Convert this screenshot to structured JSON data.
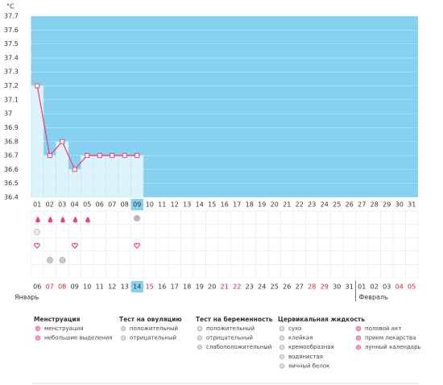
{
  "chart_data": {
    "type": "line",
    "y_unit": "°C",
    "categories": [
      "01",
      "02",
      "03",
      "04",
      "05",
      "06",
      "07",
      "08",
      "09",
      "10",
      "11",
      "12",
      "13",
      "14",
      "15",
      "16",
      "17",
      "18",
      "19",
      "20",
      "21",
      "22",
      "23",
      "24",
      "25",
      "26",
      "27",
      "28",
      "29",
      "30",
      "31"
    ],
    "values": [
      37.2,
      36.7,
      36.8,
      36.6,
      36.7,
      36.7,
      36.7,
      36.7,
      36.7,
      null,
      null,
      null,
      null,
      null,
      null,
      null,
      null,
      null,
      null,
      null,
      null,
      null,
      null,
      null,
      null,
      null,
      null,
      null,
      null,
      null,
      null
    ],
    "color": "#e8457c",
    "background_color": "#87d1f0",
    "bar_color": "#dcf3fc",
    "ylim": [
      36.4,
      37.7
    ],
    "yticks": [
      36.4,
      36.5,
      36.6,
      36.7,
      36.8,
      36.9,
      37,
      37.1,
      37.2,
      37.3,
      37.4,
      37.5,
      37.6,
      37.7
    ],
    "grid": true,
    "highlight_index": 8
  },
  "calendar": {
    "dates": [
      {
        "text": "06"
      },
      {
        "text": "07",
        "red": true
      },
      {
        "text": "08",
        "red": true
      },
      {
        "text": "09"
      },
      {
        "text": "10"
      },
      {
        "text": "11"
      },
      {
        "text": "12"
      },
      {
        "text": "13"
      },
      {
        "text": "14",
        "highlight": true
      },
      {
        "text": "15",
        "red": true
      },
      {
        "text": "16"
      },
      {
        "text": "17"
      },
      {
        "text": "18"
      },
      {
        "text": "19"
      },
      {
        "text": "20"
      },
      {
        "text": "21",
        "red": true
      },
      {
        "text": "22",
        "red": true
      },
      {
        "text": "23"
      },
      {
        "text": "24"
      },
      {
        "text": "25"
      },
      {
        "text": "26"
      },
      {
        "text": "27"
      },
      {
        "text": "28",
        "red": true
      },
      {
        "text": "29",
        "red": true
      },
      {
        "text": "30"
      },
      {
        "text": "31"
      },
      {
        "text": "01"
      },
      {
        "text": "02"
      },
      {
        "text": "03"
      },
      {
        "text": "04",
        "red": true
      },
      {
        "text": "05",
        "red": true
      }
    ],
    "months": [
      "Январь",
      "Февраль"
    ]
  },
  "legend": [
    {
      "title": "Менструация",
      "items": [
        "менструация",
        "небольшие выделения"
      ]
    },
    {
      "title": "Тест на овуляцию",
      "items": [
        "положительный",
        "отрицательный"
      ]
    },
    {
      "title": "Тест на беременность",
      "items": [
        "положительный",
        "отрицательный",
        "слабоположительный"
      ]
    },
    {
      "title": "Цервикальная жидкость",
      "items": [
        "сухо",
        "клейкая",
        "кремообразная",
        "водянистая",
        "яичный белок"
      ]
    },
    {
      "items": [
        "половой акт",
        "прием лекарства",
        "лунный календарь"
      ]
    }
  ]
}
